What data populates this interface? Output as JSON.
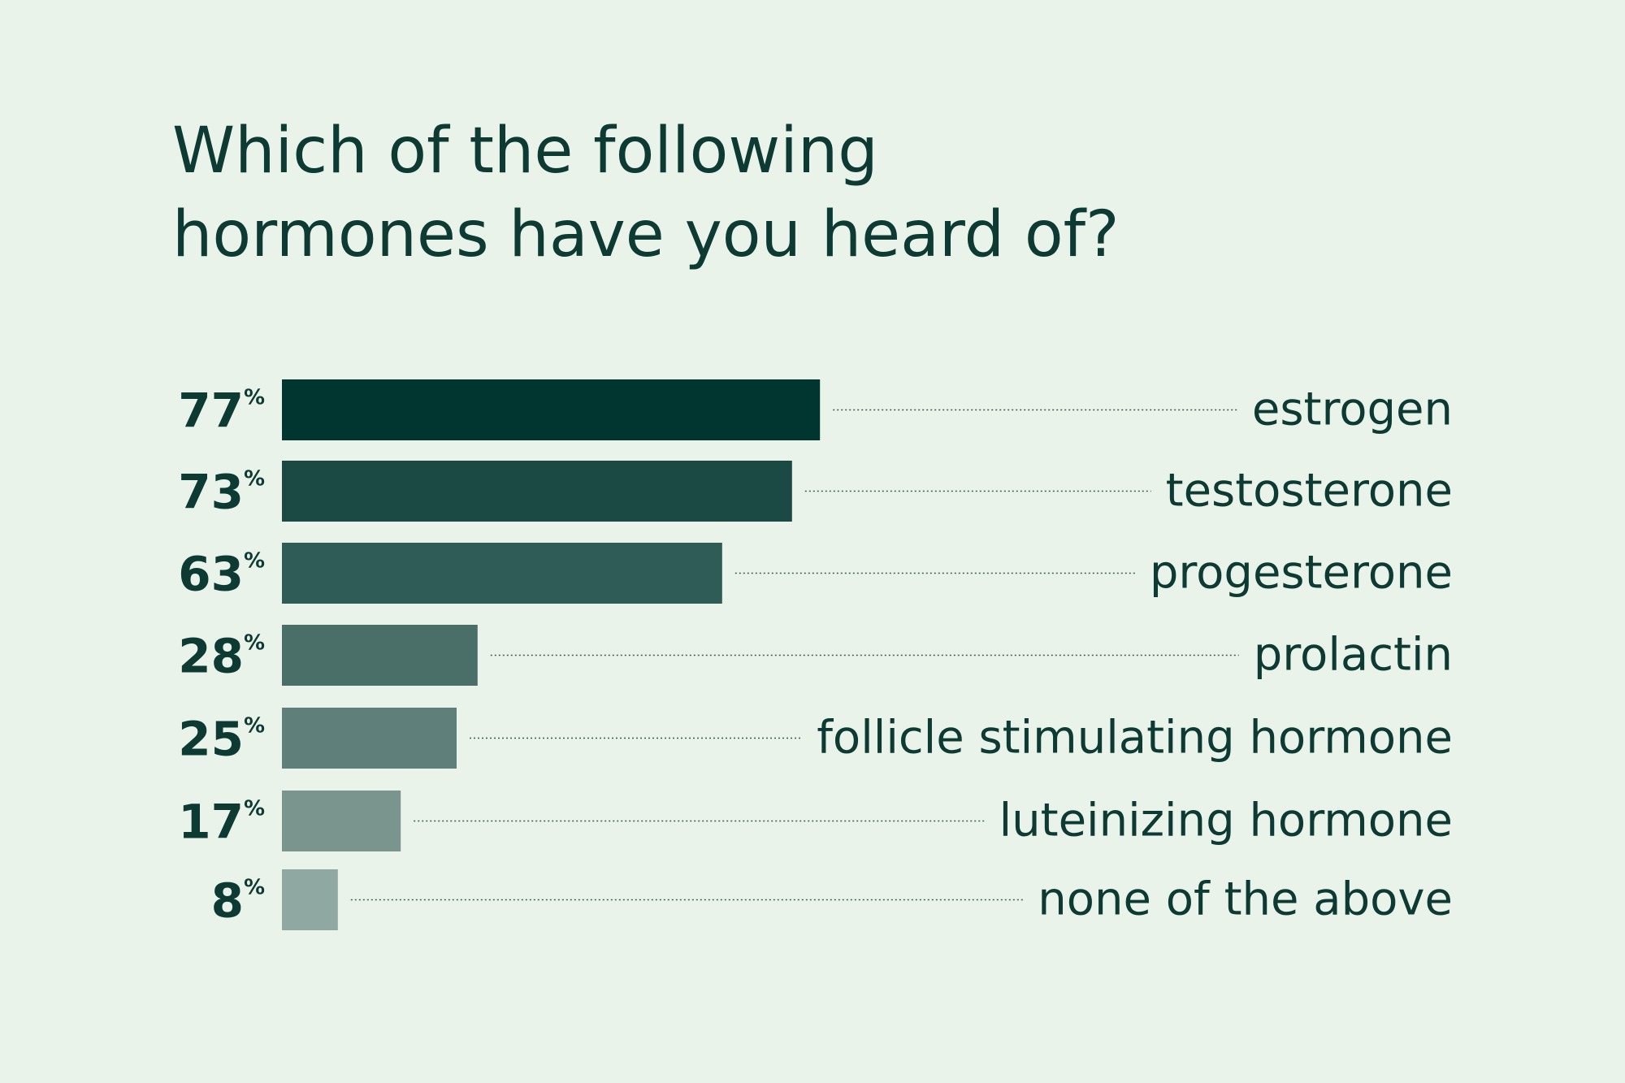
{
  "chart_data": {
    "type": "bar",
    "orientation": "horizontal",
    "title_lines": [
      "Which of the following",
      "hormones have you heard of?"
    ],
    "categories": [
      "estrogen",
      "testosterone",
      "progesterone",
      "prolactin",
      "follicle stimulating hormone",
      "luteinizing hormone",
      "none of the above"
    ],
    "values": [
      77,
      73,
      63,
      28,
      25,
      17,
      8
    ],
    "value_suffix": "%",
    "xlim": [
      0,
      100
    ],
    "grid": false,
    "legend": "none",
    "bar_colors": [
      "#013530",
      "#1b4944",
      "#2f5c57",
      "#4a6f69",
      "#5f807a",
      "#7a958e",
      "#8fa9a2"
    ]
  },
  "colors": {
    "background": "#eaf3ea",
    "text": "#0d3a33"
  }
}
